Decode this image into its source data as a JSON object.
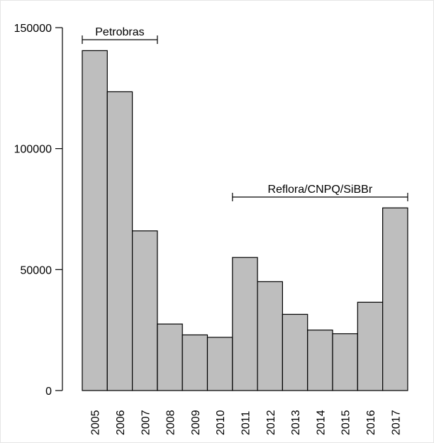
{
  "chart_data": {
    "type": "bar",
    "categories": [
      "2005",
      "2006",
      "2007",
      "2008",
      "2009",
      "2010",
      "2011",
      "2012",
      "2013",
      "2014",
      "2015",
      "2016",
      "2017"
    ],
    "values": [
      140500,
      123500,
      66000,
      27500,
      23000,
      22000,
      55000,
      45000,
      31500,
      25000,
      23500,
      36500,
      75500
    ],
    "yticks": [
      "0",
      "50000",
      "100000",
      "150000"
    ],
    "ylim": [
      0,
      150000
    ],
    "title": "",
    "xlabel": "",
    "ylabel": "",
    "bar_color": "#bebebe",
    "grid": false,
    "annotations": [
      {
        "label": "Petrobras",
        "from": "2005",
        "to": "2007"
      },
      {
        "label": "Reflora/CNPQ/SiBBr",
        "from": "2011",
        "to": "2017"
      }
    ]
  }
}
